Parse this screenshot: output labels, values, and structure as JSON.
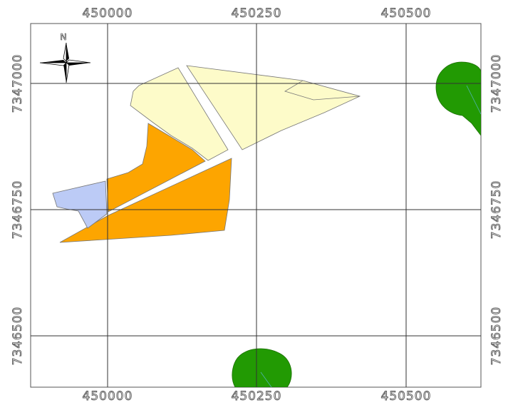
{
  "map": {
    "grid": {
      "x_labels": [
        "450000",
        "450250",
        "450500"
      ],
      "y_labels": [
        "7347000",
        "7346750",
        "7346500"
      ]
    },
    "north_arrow": {
      "label": "N"
    },
    "colors": {
      "parcel_yellow": "#fdfbc9",
      "parcel_orange": "#fda500",
      "parcel_blue": "#bccbf6",
      "buffer_green": "#229a03",
      "grid_line": "#333333",
      "frame": "#555555"
    }
  }
}
